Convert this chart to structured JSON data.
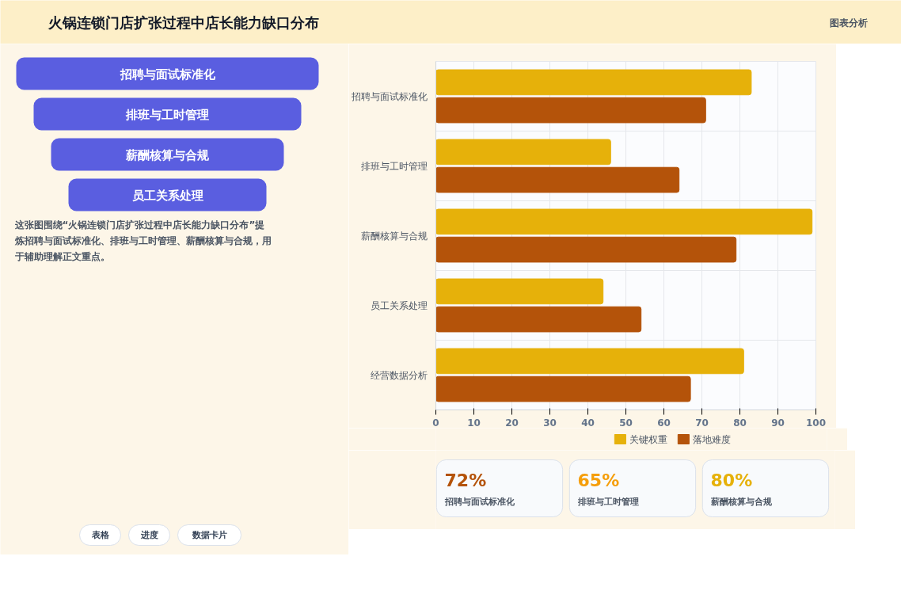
{
  "chart_data": [
    {
      "type": "other",
      "title": "火锅连锁门店扩张过程中店长能力缺口分布",
      "categories": [
        "招聘与面试标准化",
        "排班与工时管理",
        "薪酬核算与合规",
        "员工关系处理"
      ],
      "annotations": [
        "图表分析",
        "这张图围绕“火锅连锁门店扩张过程中店长能力缺口分布”提炼招聘与面试标准化、排班与工时管理、薪酬核算与合规，用于辅助理解正文重点。",
        "表格",
        "进度",
        "数据卡片"
      ]
    },
    {
      "type": "bar",
      "orientation": "horizontal",
      "categories": [
        "招聘与面试标准化",
        "排班与工时管理",
        "薪酬核算与合规",
        "员工关系处理",
        "经营数据分析"
      ],
      "series": [
        {
          "name": "关键权重",
          "color": "#e6b10a",
          "values": [
            83,
            46,
            99,
            44,
            81
          ]
        },
        {
          "name": "落地难度",
          "color": "#b4530a",
          "values": [
            71,
            64,
            79,
            54,
            67
          ]
        }
      ],
      "xlim": [
        0,
        100
      ],
      "xticks": [
        0,
        10,
        20,
        30,
        40,
        50,
        60,
        70,
        80,
        90,
        100
      ],
      "grid": true,
      "legend": "bottom"
    },
    {
      "type": "other",
      "annotations": [
        "72%",
        "招聘与面试标准化",
        "65%",
        "排班与工时管理",
        "80%",
        "薪酬核算与合规"
      ]
    }
  ]
}
